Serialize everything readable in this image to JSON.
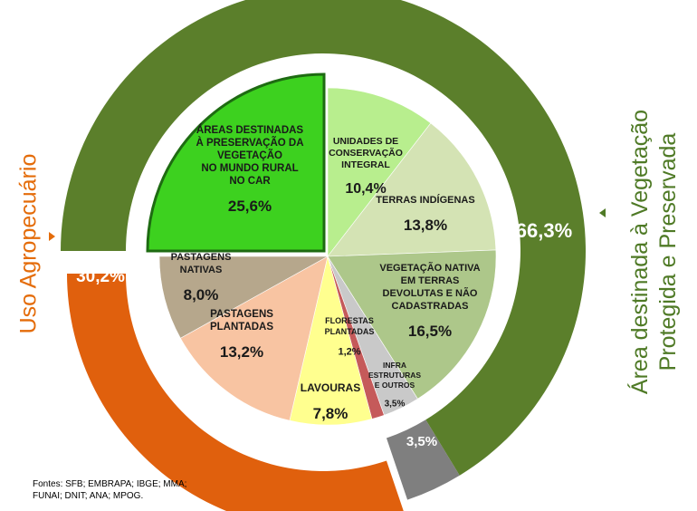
{
  "chart_data": {
    "type": "pie",
    "title": "",
    "outer_ring": [
      {
        "name": "Área destinada à Vegetação Protegida e Preservada",
        "value": 66.3,
        "label": "66,3%",
        "color": "#5b7f2b"
      },
      {
        "name": "Infraestruturas e outros",
        "value": 3.5,
        "label": "3,5%",
        "color": "#7f7f7f"
      },
      {
        "name": "Uso Agropecuário",
        "value": 30.2,
        "label": "30,2%",
        "color": "#e0600d"
      }
    ],
    "inner_pie": [
      {
        "name": "Áreas destinadas à preservação da vegetação no mundo rural no CAR",
        "lines": [
          "ÁREAS DESTINADAS",
          "À PRESERVAÇÃO DA",
          "VEGETAÇÃO",
          "NO MUNDO RURAL",
          "NO CAR"
        ],
        "value": 25.6,
        "label": "25,6%",
        "color": "#3dd11f",
        "exploded": true
      },
      {
        "name": "Unidades de conservação integral",
        "lines": [
          "UNIDADES  DE",
          "CONSERVAÇÃO",
          "INTEGRAL"
        ],
        "value": 10.4,
        "label": "10,4%",
        "color": "#b8ee8e"
      },
      {
        "name": "Terras indígenas",
        "lines": [
          "TERRAS INDÍGENAS"
        ],
        "value": 13.8,
        "label": "13,8%",
        "color": "#d4e3b4"
      },
      {
        "name": "Vegetação nativa em terras devolutas e não cadastradas",
        "lines": [
          "VEGETAÇÃO NATIVA",
          "EM TERRAS",
          "DEVOLUTAS E NÃO",
          "CADASTRADAS"
        ],
        "value": 16.5,
        "label": "16,5%",
        "color": "#adc78a"
      },
      {
        "name": "Infra estruturas e outros",
        "lines": [
          "INFRA",
          "ESTRUTURAS",
          "E OUTROS"
        ],
        "value": 3.5,
        "label": "3,5%",
        "color": "#c9c9c9"
      },
      {
        "name": "Florestas plantadas",
        "lines": [
          "FLORESTAS",
          "PLANTADAS"
        ],
        "value": 1.2,
        "label": "1,2%",
        "color": "#c55a5a"
      },
      {
        "name": "Lavouras",
        "lines": [
          "LAVOURAS"
        ],
        "value": 7.8,
        "label": "7,8%",
        "color": "#ffff8f"
      },
      {
        "name": "Pastagens plantadas",
        "lines": [
          "PASTAGENS",
          "PLANTADAS"
        ],
        "value": 13.2,
        "label": "13,2%",
        "color": "#f8c4a2"
      },
      {
        "name": "Pastagens nativas",
        "lines": [
          "PASTAGENS",
          "NATIVAS"
        ],
        "value": 8.0,
        "label": "8,0%",
        "color": "#b6a78c"
      }
    ],
    "side_labels": {
      "left": "Uso Agropecuário",
      "right_line1": "Área destinada à Vegetação",
      "right_line2": "Protegida e Preservada"
    },
    "sources": "Fontes: SFB; EMBRAPA; IBGE; MMA;\nFUNAI; DNIT; ANA; MPOG."
  },
  "colors": {
    "left_label": "#e46c0a",
    "right_label": "#4f7a26"
  }
}
